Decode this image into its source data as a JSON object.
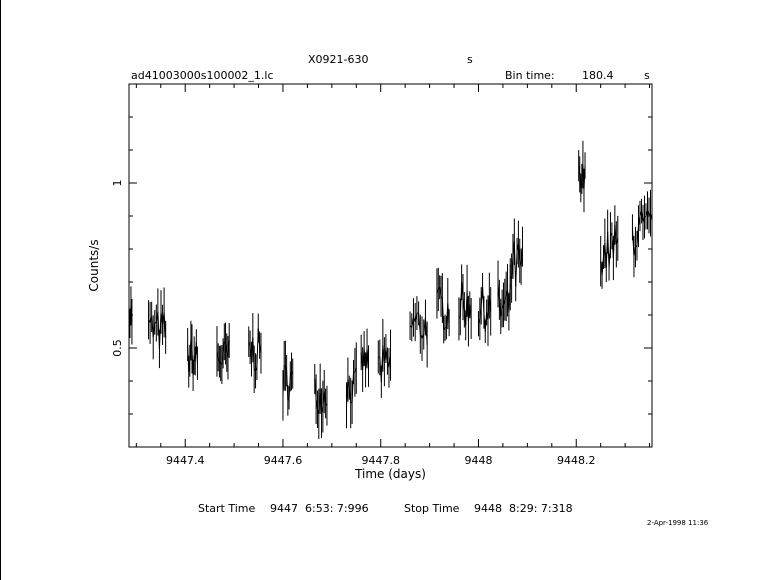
{
  "header": {
    "object": "X0921-630",
    "object_unit": "s",
    "filename": "ad41003000s100002_1.lc",
    "bin_label": "Bin time:",
    "bin_value": "180.4",
    "bin_unit": "s"
  },
  "footer": {
    "start_label": "Start Time",
    "start_value": "9447  6:53: 7:996",
    "stop_label": "Stop Time",
    "stop_value": "9448  8:29: 7:318",
    "date_stamp": "2-Apr-1998 11:36"
  },
  "chart_data": {
    "type": "scatter",
    "title": "X0921-630",
    "xlabel": "Time (days)",
    "ylabel": "Counts/s",
    "xlim": [
      9447.285,
      9448.355
    ],
    "ylim": [
      0.2,
      1.3
    ],
    "x_ticks": [
      9447.4,
      9447.6,
      9447.8,
      9448,
      9448.2
    ],
    "x_tick_labels": [
      "9447.4",
      "9447.6",
      "9447.8",
      "9448",
      "9448.2"
    ],
    "y_ticks": [
      0.5,
      1
    ],
    "y_tick_labels": [
      "0.5",
      "1"
    ],
    "segments": [
      {
        "x_start": 9447.285,
        "x_end": 9447.291,
        "level": 0.6,
        "scatter": 0.06,
        "n": 4
      },
      {
        "x_start": 9447.325,
        "x_end": 9447.36,
        "level": 0.55,
        "scatter": 0.07,
        "n": 12
      },
      {
        "x_start": 9447.405,
        "x_end": 9447.425,
        "level": 0.47,
        "scatter": 0.06,
        "n": 10
      },
      {
        "x_start": 9447.465,
        "x_end": 9447.49,
        "level": 0.47,
        "scatter": 0.06,
        "n": 11
      },
      {
        "x_start": 9447.53,
        "x_end": 9447.555,
        "level": 0.49,
        "scatter": 0.07,
        "n": 10
      },
      {
        "x_start": 9447.6,
        "x_end": 9447.62,
        "level": 0.4,
        "scatter": 0.06,
        "n": 9
      },
      {
        "x_start": 9447.665,
        "x_end": 9447.69,
        "level": 0.36,
        "scatter": 0.06,
        "n": 10
      },
      {
        "x_start": 9447.73,
        "x_end": 9447.75,
        "level": 0.38,
        "scatter": 0.06,
        "n": 8
      },
      {
        "x_start": 9447.76,
        "x_end": 9447.775,
        "level": 0.46,
        "scatter": 0.05,
        "n": 6
      },
      {
        "x_start": 9447.795,
        "x_end": 9447.82,
        "level": 0.44,
        "scatter": 0.07,
        "n": 9
      },
      {
        "x_start": 9447.86,
        "x_end": 9447.895,
        "level": 0.57,
        "scatter": 0.07,
        "n": 11
      },
      {
        "x_start": 9447.915,
        "x_end": 9447.94,
        "level": 0.62,
        "scatter": 0.07,
        "n": 10
      },
      {
        "x_start": 9447.96,
        "x_end": 9447.985,
        "level": 0.63,
        "scatter": 0.07,
        "n": 10
      },
      {
        "x_start": 9448.0,
        "x_end": 9448.025,
        "level": 0.62,
        "scatter": 0.07,
        "n": 10
      },
      {
        "x_start": 9448.04,
        "x_end": 9448.065,
        "level": 0.62,
        "scatter": 0.08,
        "n": 10
      },
      {
        "x_start": 9448.065,
        "x_end": 9448.09,
        "level": 0.74,
        "scatter": 0.09,
        "n": 10
      },
      {
        "x_start": 9448.205,
        "x_end": 9448.218,
        "level": 1.0,
        "scatter": 0.07,
        "n": 7
      },
      {
        "x_start": 9448.25,
        "x_end": 9448.27,
        "level": 0.79,
        "scatter": 0.07,
        "n": 8
      },
      {
        "x_start": 9448.27,
        "x_end": 9448.285,
        "level": 0.8,
        "scatter": 0.08,
        "n": 6
      },
      {
        "x_start": 9448.315,
        "x_end": 9448.355,
        "level": 0.85,
        "scatter": 0.08,
        "n": 14
      }
    ],
    "grid": false,
    "legend": "none"
  }
}
